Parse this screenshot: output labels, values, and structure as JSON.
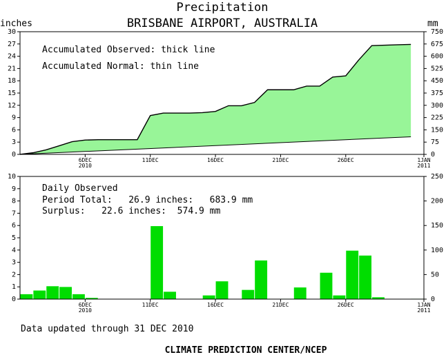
{
  "header": {
    "title": "Precipitation",
    "location": "BRISBANE AIRPORT, AUSTRALIA"
  },
  "accum_panel": {
    "left_unit": "inches",
    "right_unit": "mm",
    "legend_observed": "Accumulated Observed: thick line",
    "legend_normal": "Accumulated Normal: thin line"
  },
  "daily_panel": {
    "label_observed": "Daily Observed",
    "period_total": "Period Total:   26.9 inches:   683.9 mm",
    "surplus": "Surplus:   22.6 inches:  574.9 mm"
  },
  "footer": {
    "updated": "Data updated through 31 DEC 2010",
    "credit": "CLIMATE PREDICTION CENTER/NCEP"
  },
  "colors": {
    "area_fill": "#98f598",
    "bar_fill": "#00dd00"
  },
  "chart_data": [
    {
      "type": "area",
      "title": "Precipitation",
      "subtitle": "BRISBANE AIRPORT, AUSTRALIA",
      "ylabel": "inches",
      "y2label": "mm",
      "ylim": [
        0,
        30
      ],
      "y2lim": [
        0,
        750
      ],
      "yticks": [
        0,
        3,
        6,
        9,
        12,
        15,
        18,
        21,
        24,
        27,
        30
      ],
      "y2ticks": [
        0,
        75,
        150,
        225,
        300,
        375,
        450,
        525,
        600,
        675,
        750
      ],
      "xlim": [
        1,
        32
      ],
      "xticks": [
        {
          "day": 6,
          "label": "6DEC",
          "sublabel": "2010"
        },
        {
          "day": 11,
          "label": "11DEC",
          "sublabel": ""
        },
        {
          "day": 16,
          "label": "16DEC",
          "sublabel": ""
        },
        {
          "day": 21,
          "label": "21DEC",
          "sublabel": ""
        },
        {
          "day": 26,
          "label": "26DEC",
          "sublabel": ""
        },
        {
          "day": 32,
          "label": "1JAN",
          "sublabel": "2011"
        }
      ],
      "series": [
        {
          "name": "Accumulated Observed",
          "x": [
            1,
            2,
            3,
            4,
            5,
            6,
            7,
            8,
            9,
            10,
            11,
            12,
            13,
            14,
            15,
            16,
            17,
            18,
            19,
            20,
            21,
            22,
            23,
            24,
            25,
            26,
            27,
            28,
            29,
            30,
            31
          ],
          "values": [
            0.0,
            0.4,
            1.1,
            2.1,
            3.1,
            3.5,
            3.6,
            3.6,
            3.6,
            3.6,
            9.5,
            10.1,
            10.1,
            10.1,
            10.2,
            10.5,
            11.9,
            11.9,
            12.7,
            15.8,
            15.8,
            15.8,
            16.7,
            16.7,
            18.9,
            19.2,
            23.1,
            26.6,
            26.7,
            26.8,
            26.9
          ]
        },
        {
          "name": "Accumulated Normal",
          "x": [
            1,
            31
          ],
          "values": [
            0.0,
            4.3
          ]
        }
      ]
    },
    {
      "type": "bar",
      "ylim": [
        0,
        10
      ],
      "y2lim": [
        0,
        250
      ],
      "yticks": [
        0,
        1,
        2,
        3,
        4,
        5,
        6,
        7,
        8,
        9,
        10
      ],
      "y2ticks": [
        0,
        50,
        100,
        150,
        200,
        250
      ],
      "series": [
        {
          "name": "Daily Observed",
          "x": [
            1,
            2,
            3,
            4,
            5,
            6,
            7,
            8,
            9,
            10,
            11,
            12,
            13,
            14,
            15,
            16,
            17,
            18,
            19,
            20,
            21,
            22,
            23,
            24,
            25,
            26,
            27,
            28,
            29,
            30,
            31
          ],
          "values": [
            0.4,
            0.7,
            1.05,
            0.99,
            0.4,
            0.1,
            0,
            0,
            0,
            0,
            5.95,
            0.6,
            0,
            0.03,
            0.3,
            1.45,
            0,
            0.75,
            3.15,
            0,
            0.03,
            0.95,
            0,
            2.15,
            0.3,
            3.95,
            3.55,
            0.15,
            0,
            0,
            0.03
          ]
        }
      ]
    }
  ]
}
